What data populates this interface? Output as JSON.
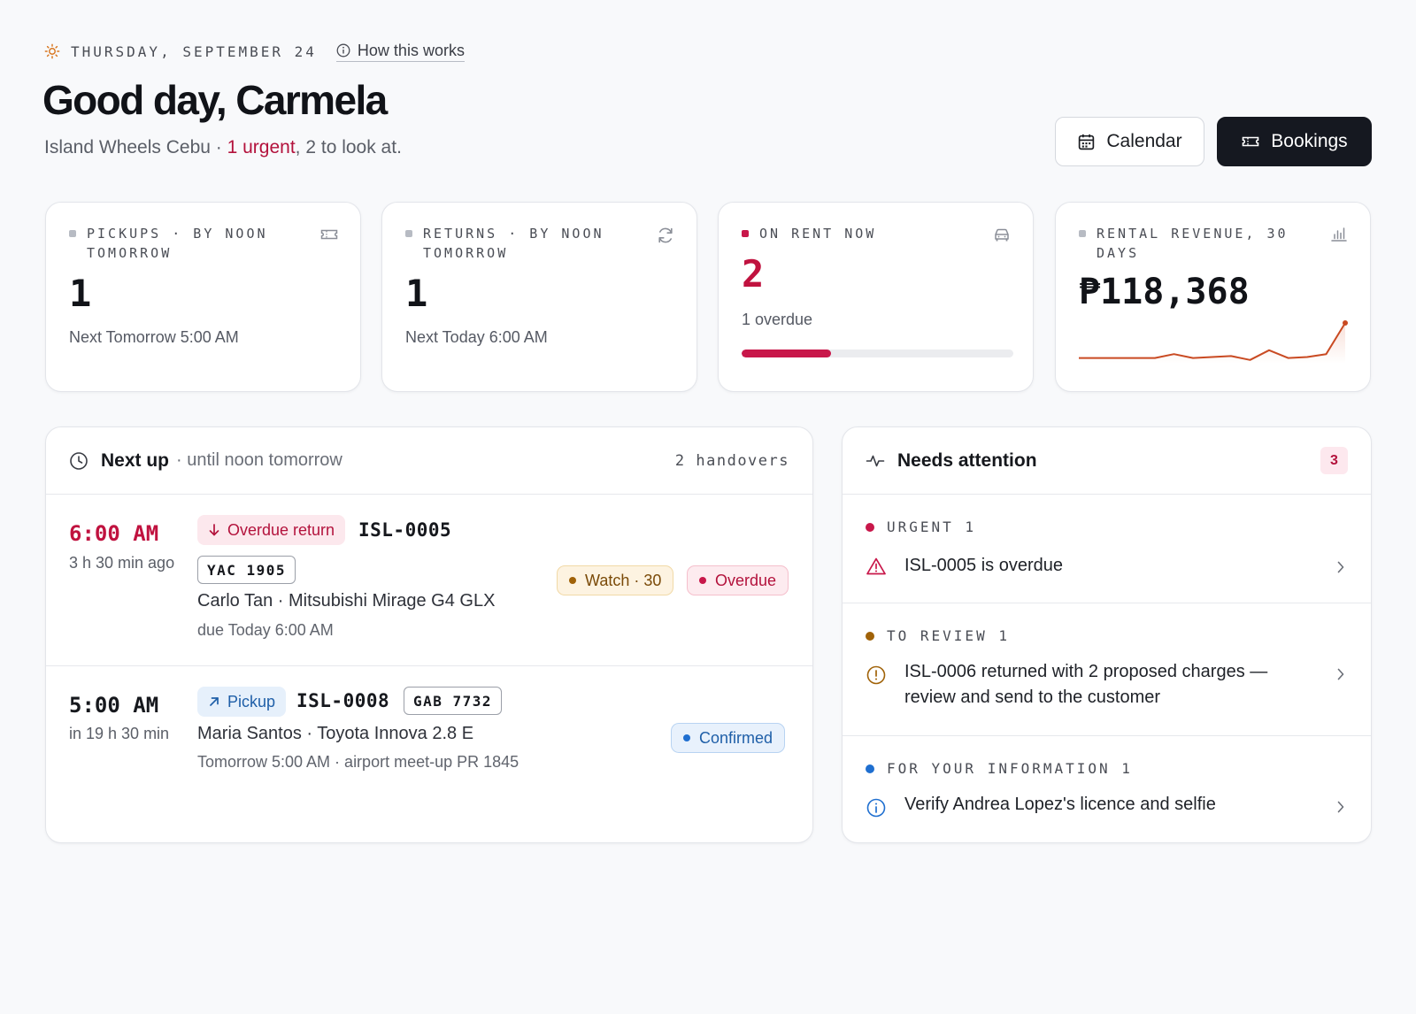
{
  "header": {
    "date": "THURSDAY, SEPTEMBER 24",
    "how_link": "How this works",
    "greeting": "Good day, Carmela",
    "business": "Island Wheels Cebu",
    "sep": " · ",
    "urgent": "1 urgent",
    "rest": ", 2 to look at.",
    "calendar_label": "Calendar",
    "bookings_label": "Bookings"
  },
  "stats": {
    "pickups": {
      "label": "PICKUPS · BY NOON TOMORROW",
      "value": "1",
      "sub": "Next Tomorrow 5:00 AM"
    },
    "returns": {
      "label": "RETURNS · BY NOON TOMORROW",
      "value": "1",
      "sub": "Next Today 6:00 AM"
    },
    "on_rent": {
      "label": "ON RENT NOW",
      "value": "2",
      "sub": "1 overdue",
      "progress": 0.33
    },
    "revenue": {
      "label": "RENTAL REVENUE, 30 DAYS",
      "value": "₱118,368",
      "trend": [
        2,
        2,
        2,
        2,
        2,
        4,
        2,
        2.5,
        3,
        1,
        6,
        2,
        2.5,
        4,
        20
      ]
    }
  },
  "next_up": {
    "title": "Next up",
    "suffix": "· until noon tomorrow",
    "count": "2 handovers",
    "items": [
      {
        "time": "6:00 AM",
        "relative": "3 h 30 min ago",
        "type": "Overdue return",
        "ref": "ISL-0005",
        "plate": "YAC 1905",
        "who": "Carlo Tan · Mitsubishi Mirage G4 GLX",
        "meta": "due Today 6:00 AM",
        "pills": [
          "Watch · 30",
          "Overdue"
        ]
      },
      {
        "time": "5:00 AM",
        "relative": "in 19 h 30 min",
        "type": "Pickup",
        "ref": "ISL-0008",
        "plate": "GAB 7732",
        "who": "Maria Santos · Toyota Innova 2.8 E",
        "meta": "Tomorrow 5:00 AM · airport meet-up PR 1845",
        "pills": [
          "Confirmed"
        ]
      }
    ]
  },
  "attention": {
    "title": "Needs attention",
    "badge": "3",
    "groups": [
      {
        "label": "URGENT 1",
        "color": "#c8174a",
        "text": "ISL-0005 is overdue"
      },
      {
        "label": "TO REVIEW 1",
        "color": "#a06208",
        "text": "ISL-0006 returned with 2 proposed charges — review and send to the customer"
      },
      {
        "label": "FOR YOUR INFORMATION 1",
        "color": "#1f6fd0",
        "text": "Verify Andrea Lopez's licence and selfie"
      }
    ]
  }
}
